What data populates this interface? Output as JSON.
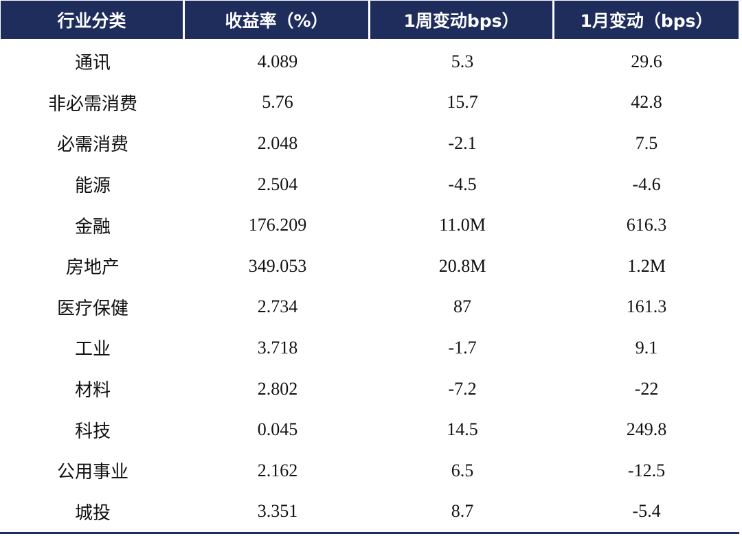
{
  "table": {
    "headers": [
      "行业分类",
      "收益率（%）",
      "1周变动bps）",
      "1月变动（bps）"
    ],
    "rows": [
      [
        "通讯",
        "4.089",
        "5.3",
        "29.6"
      ],
      [
        "非必需消费",
        "5.76",
        "15.7",
        "42.8"
      ],
      [
        "必需消费",
        "2.048",
        "-2.1",
        "7.5"
      ],
      [
        "能源",
        "2.504",
        "-4.5",
        "-4.6"
      ],
      [
        "金融",
        "176.209",
        "11.0M",
        "616.3"
      ],
      [
        "房地产",
        "349.053",
        "20.8M",
        "1.2M"
      ],
      [
        "医疗保健",
        "2.734",
        "87",
        "161.3"
      ],
      [
        "工业",
        "3.718",
        "-1.7",
        "9.1"
      ],
      [
        "材料",
        "2.802",
        "-7.2",
        "-22"
      ],
      [
        "科技",
        "0.045",
        "14.5",
        "249.8"
      ],
      [
        "公用事业",
        "2.162",
        "6.5",
        "-12.5"
      ],
      [
        "城投",
        "3.351",
        "8.7",
        "-5.4"
      ]
    ]
  },
  "colors": {
    "header_bg": "#1e2d5c",
    "header_text": "#ffffff",
    "rule": "#1e2d5c"
  }
}
